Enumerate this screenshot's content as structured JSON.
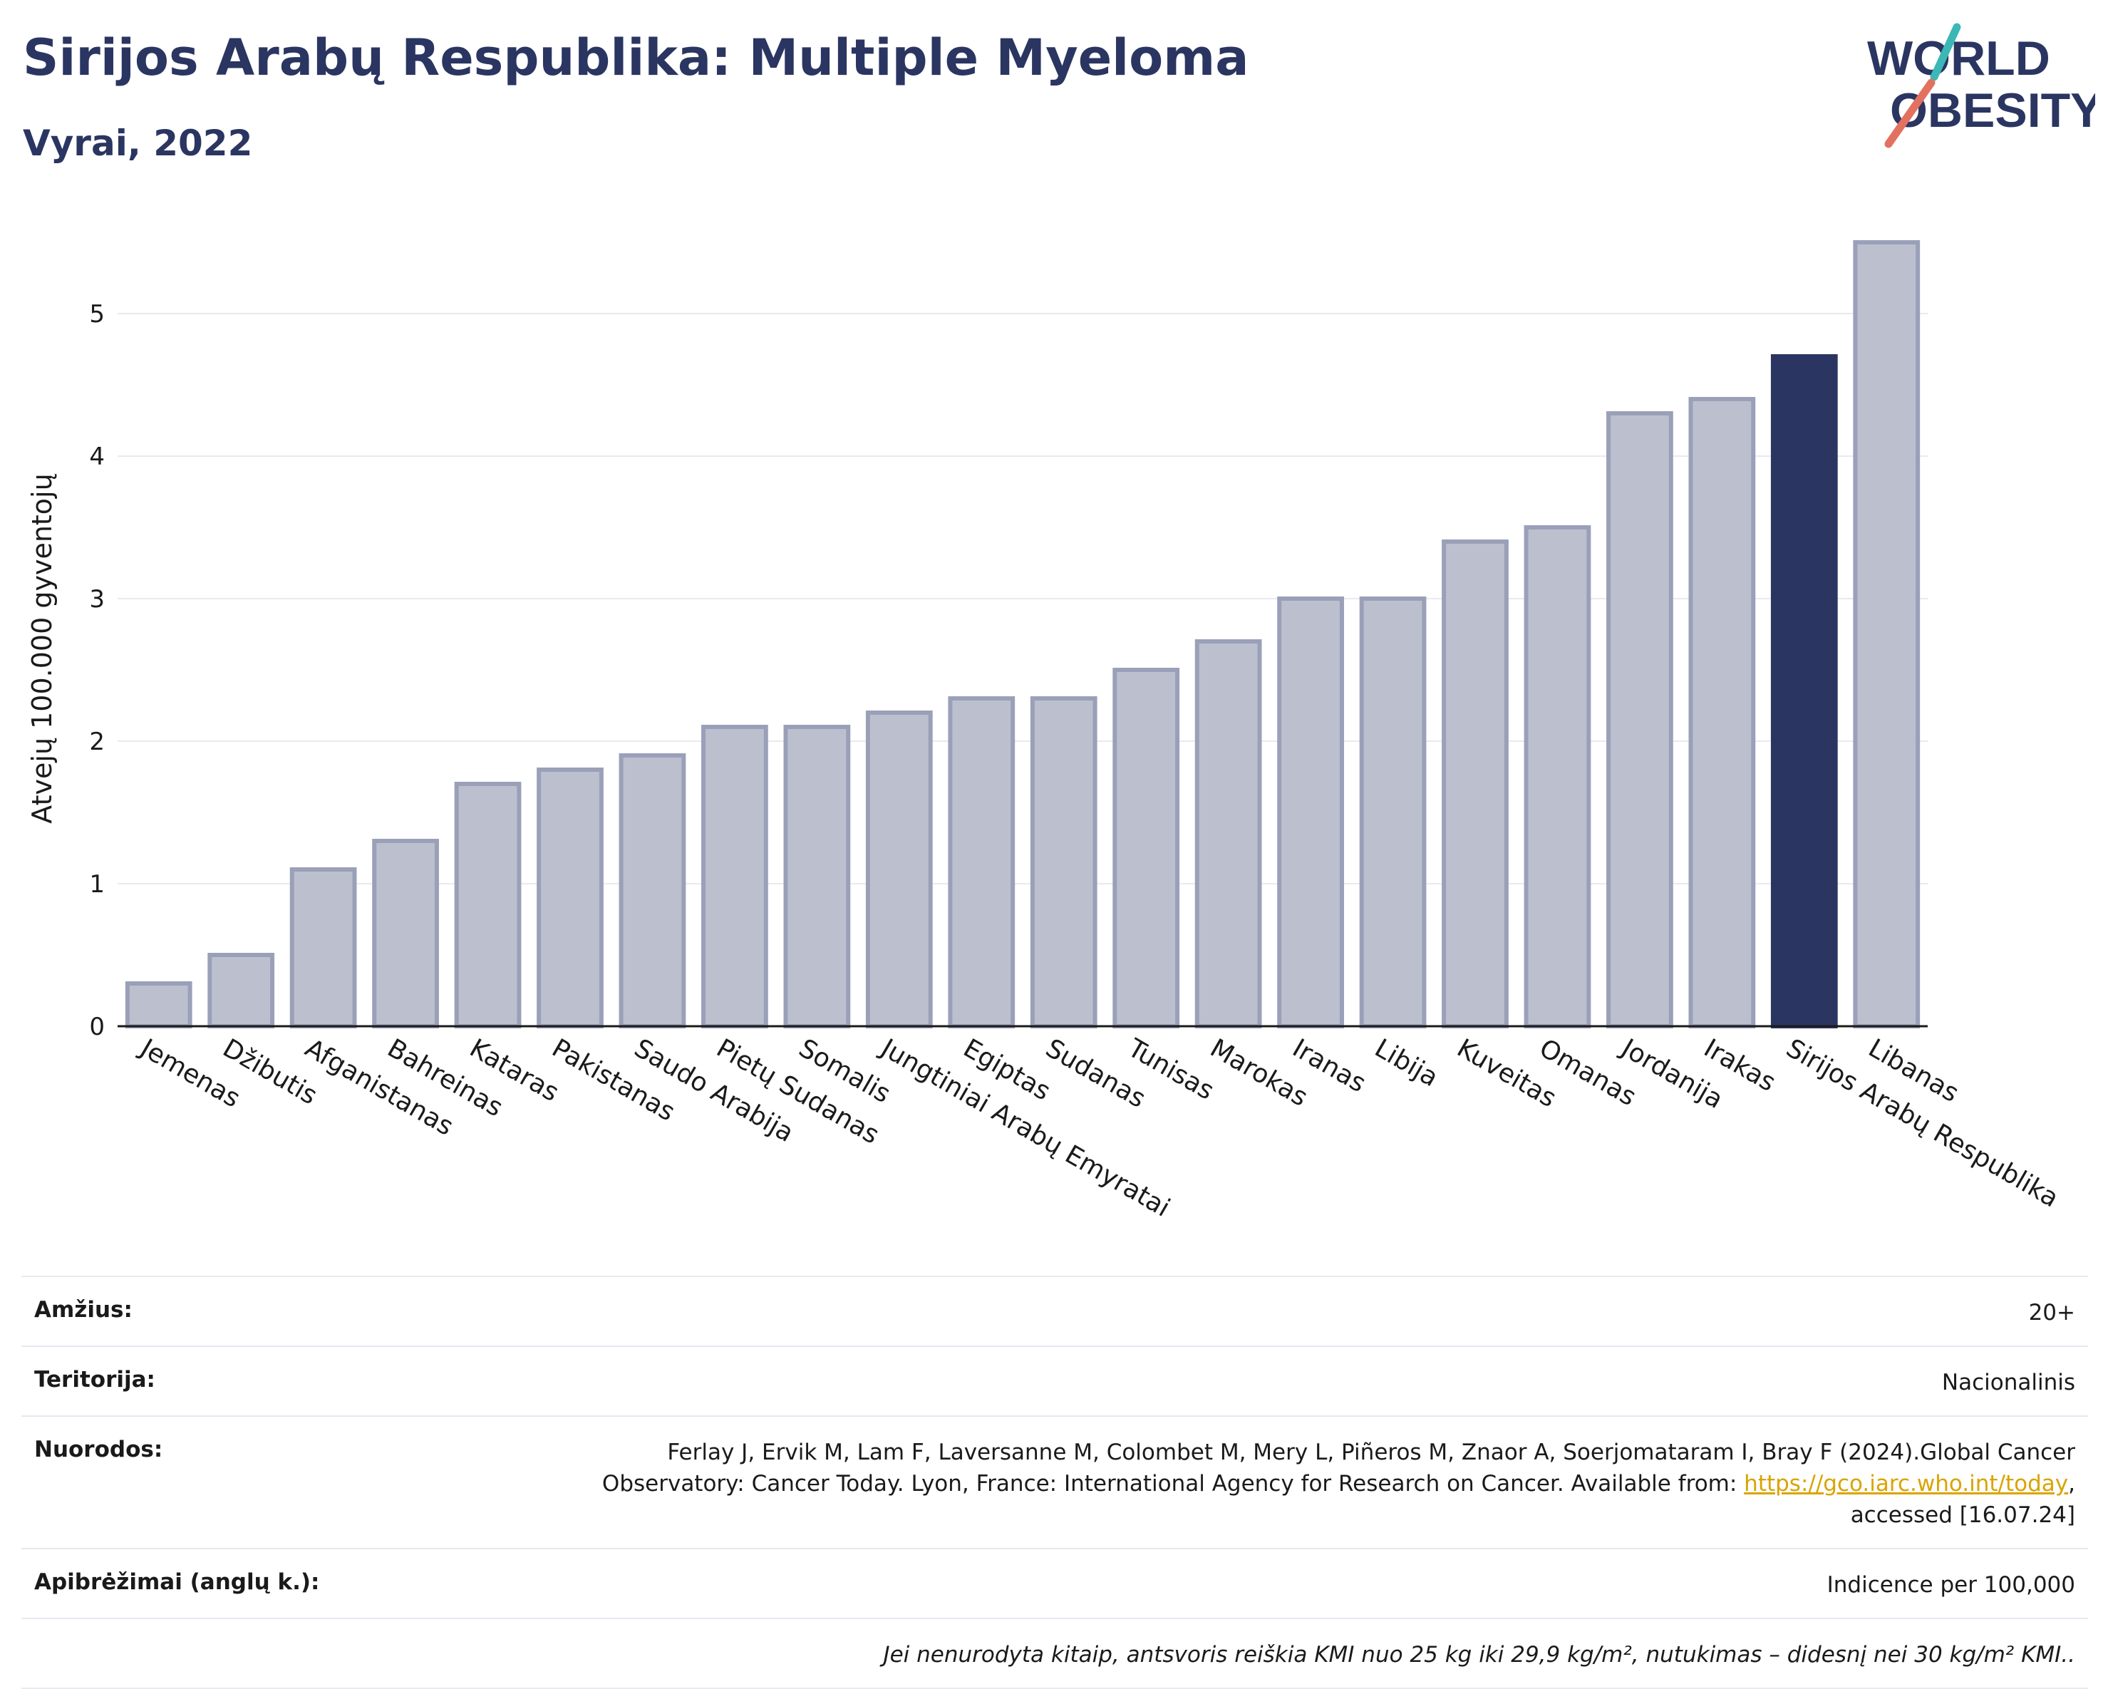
{
  "header": {
    "title": "Sirijos Arabų Respublika: Multiple Myeloma",
    "subtitle": "Vyrai, 2022",
    "logo_line1": "WORLD",
    "logo_line2": "OBESITY"
  },
  "colors": {
    "highlight": "#2b3561",
    "bar": "#bcc0ce",
    "bar_border": "#9aa0b8",
    "title": "#2b3561",
    "logo_teal": "#3bb8b5",
    "logo_coral": "#e2715f"
  },
  "chart_data": {
    "type": "bar",
    "ylabel": "Atvejų 100.000 gyventojų",
    "ylim": [
      0,
      5.6
    ],
    "yticks": [
      0,
      1,
      2,
      3,
      4,
      5
    ],
    "grid": true,
    "highlight": "Sirijos Arabų Respublika",
    "categories": [
      "Jemenas",
      "Džibutis",
      "Afganistanas",
      "Bahreinas",
      "Kataras",
      "Pakistanas",
      "Saudo Arabija",
      "Pietų Sudanas",
      "Somalis",
      "Jungtiniai Arabų Emyratai",
      "Egiptas",
      "Sudanas",
      "Tunisas",
      "Marokas",
      "Iranas",
      "Libija",
      "Kuveitas",
      "Omanas",
      "Jordanija",
      "Irakas",
      "Sirijos Arabų Respublika",
      "Libanas"
    ],
    "values": [
      0.3,
      0.5,
      1.1,
      1.3,
      1.7,
      1.8,
      1.9,
      2.1,
      2.1,
      2.2,
      2.3,
      2.3,
      2.5,
      2.7,
      3.0,
      3.0,
      3.4,
      3.5,
      4.3,
      4.4,
      4.7,
      5.5
    ]
  },
  "footer": {
    "age_label": "Amžius:",
    "age_value": "20+",
    "territory_label": "Teritorija:",
    "territory_value": "Nacionalinis",
    "refs_label": "Nuorodos:",
    "refs_line1": "Ferlay J, Ervik M, Lam F, Laversanne M, Colombet M, Mery L, Piñeros M, Znaor A, Soerjomataram I, Bray F (2024).Global Cancer",
    "refs_line2_pre": "Observatory: Cancer Today. Lyon, France: International Agency for Research on Cancer. Available from: ",
    "refs_link": "https://gco.iarc.who.int/today",
    "refs_line2_post": ",",
    "refs_line3": "accessed [16.07.24]",
    "defs_label": "Apibrėžimai (anglų k.):",
    "defs_value": "Indicence per 100,000",
    "note": "Jei nenurodyta kitaip, antsvoris reiškia KMI nuo 25 kg iki 29,9 kg/m², nutukimas – didesnį nei 30 kg/m² KMI.."
  }
}
